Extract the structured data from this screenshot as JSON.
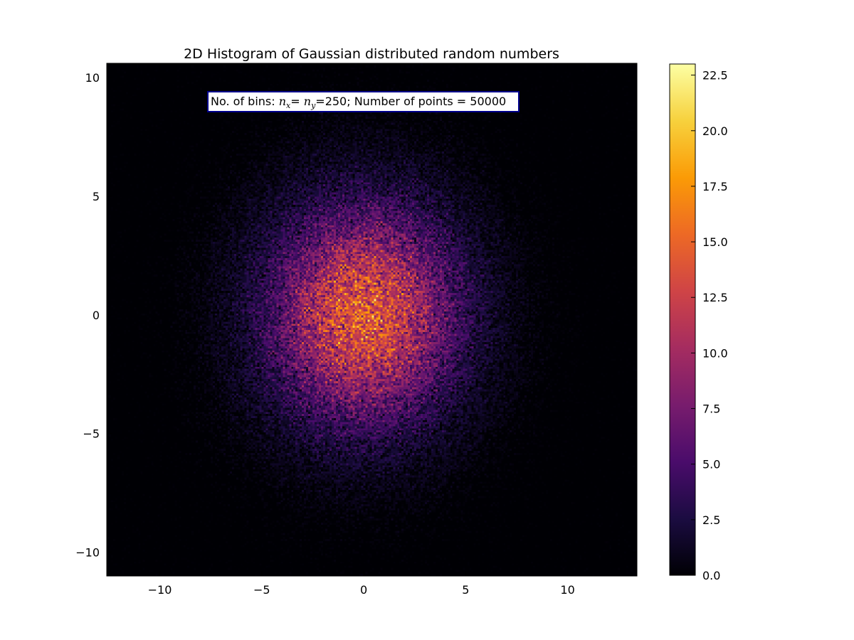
{
  "chart_data": {
    "type": "heatmap",
    "title": "2D Histogram of Gaussian distributed random numbers",
    "xlabel": "",
    "ylabel": "",
    "xlim": [
      -12.6,
      13.4
    ],
    "ylim": [
      -11.0,
      10.6
    ],
    "x_ticks": [
      -10,
      -5,
      0,
      5,
      10
    ],
    "x_tick_labels": [
      "−10",
      "−5",
      "0",
      "5",
      "10"
    ],
    "y_ticks": [
      -10,
      -5,
      0,
      5,
      10
    ],
    "y_tick_labels": [
      "−10",
      "−5",
      "0",
      "5",
      "10"
    ],
    "colormap": "inferno",
    "colormap_stops": [
      "#000004",
      "#1b0c41",
      "#4a0c6b",
      "#781c6d",
      "#a52c60",
      "#cf4446",
      "#ed6925",
      "#fb9b06",
      "#f7d13d",
      "#fcffa4"
    ],
    "colorbar": {
      "range": [
        0.0,
        23.0
      ],
      "ticks": [
        0.0,
        2.5,
        5.0,
        7.5,
        10.0,
        12.5,
        15.0,
        17.5,
        20.0,
        22.5
      ],
      "tick_labels": [
        "0.0",
        "2.5",
        "5.0",
        "7.5",
        "10.0",
        "12.5",
        "15.0",
        "17.5",
        "20.0",
        "22.5"
      ]
    },
    "bins": {
      "nx": 250,
      "ny": 250
    },
    "points": 50000,
    "distribution": {
      "center_x": 0.0,
      "center_y": 0.0,
      "peak_count": 23.0,
      "std_x": 3.0,
      "std_y": 3.0
    },
    "annotation": {
      "prefix": "No. of bins: ",
      "nx_symbol": "n",
      "nx_sub": "x",
      "sep": "= ",
      "ny_symbol": "n",
      "ny_sub": "y",
      "suffix": "=250; Number of points = 50000"
    }
  }
}
